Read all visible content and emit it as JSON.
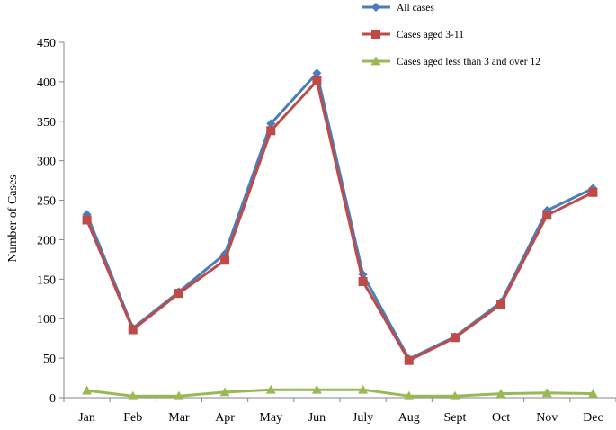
{
  "chart_data": {
    "type": "line",
    "title": "",
    "xlabel": "",
    "ylabel": "Number of Cases",
    "ylim": [
      0,
      450
    ],
    "yticks": [
      0,
      50,
      100,
      150,
      200,
      250,
      300,
      350,
      400,
      450
    ],
    "grid": false,
    "legend_position": "top-right",
    "categories": [
      "Jan",
      "Feb",
      "Mar",
      "Apr",
      "May",
      "Jun",
      "July",
      "Aug",
      "Sept",
      "Oct",
      "Nov",
      "Dec"
    ],
    "series": [
      {
        "name": "All cases",
        "color": "#4a7ebb",
        "marker": "diamond",
        "values": [
          232,
          88,
          134,
          182,
          347,
          411,
          156,
          49,
          77,
          121,
          237,
          265
        ]
      },
      {
        "name": "Cases aged 3-11",
        "color": "#be4b48",
        "marker": "square",
        "values": [
          225,
          86,
          132,
          174,
          338,
          401,
          147,
          47,
          76,
          118,
          231,
          260
        ]
      },
      {
        "name": "Cases aged less than 3 and over 12",
        "color": "#98b954",
        "marker": "triangle",
        "values": [
          9,
          2,
          2,
          7,
          10,
          10,
          10,
          2,
          2,
          5,
          6,
          5
        ]
      }
    ]
  }
}
